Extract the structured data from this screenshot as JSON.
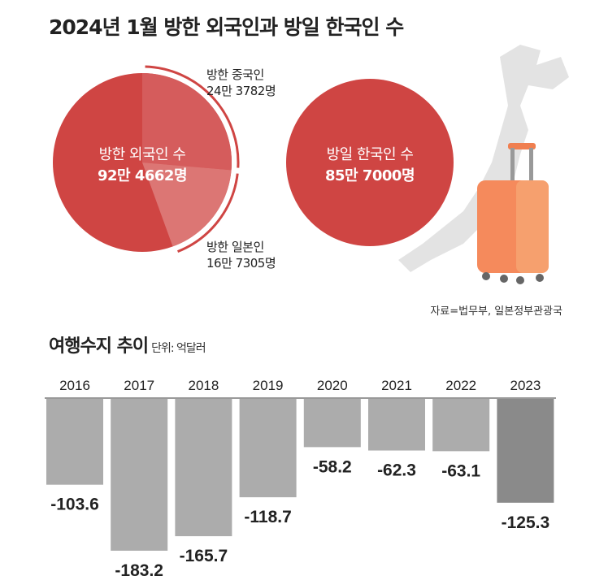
{
  "title": "2024년 1월 방한 외국인과 방일 한국인 수",
  "pie": {
    "center_label": "방한 외국인 수",
    "center_value": "92만 4662명",
    "total": 924662,
    "slices": [
      {
        "label": "방한 중국인",
        "value_text": "24만 3782명",
        "value": 243782,
        "color": "#d55c5c"
      },
      {
        "label": "방한 일본인",
        "value_text": "16만 7305명",
        "value": 167305,
        "color": "#dc7674"
      }
    ],
    "base_color": "#cf4543"
  },
  "korean_circle": {
    "label": "방일 한국인 수",
    "value": "85만 7000명",
    "color": "#cf4543"
  },
  "source": "자료=법무부, 일본정부관광국",
  "chart_data": {
    "type": "bar",
    "title": "여행수지 추이",
    "unit": "단위: 억달러",
    "categories": [
      "2016",
      "2017",
      "2018",
      "2019",
      "2020",
      "2021",
      "2022",
      "2023"
    ],
    "values": [
      -103.6,
      -183.2,
      -165.7,
      -118.7,
      -58.2,
      -62.3,
      -63.1,
      -125.3
    ],
    "labels": [
      "-103.6",
      "-183.2",
      "-165.7",
      "-118.7",
      "-58.2",
      "-62.3",
      "-63.1",
      "-125.3"
    ],
    "colors": {
      "default": "#acacac",
      "highlight": "#8a8a8a"
    },
    "ylim": [
      -200,
      0
    ]
  }
}
